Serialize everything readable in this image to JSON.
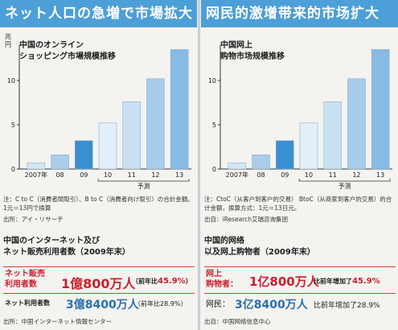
{
  "left": {
    "title": "ネット人口の急増で市場拡大",
    "chart_title_line1": "中国のオンライン",
    "chart_title_line2": "ショッピング市場規模推移",
    "y_unit": "兆円",
    "note": "注：C to C（消費者間取引）、B to C（消費者向け取引）の合計金額。1元＝13円で換算",
    "source": "出所：アイ・リサーチ",
    "section_title_line1": "中国のインターネット及び",
    "section_title_line2": "ネット販売利用者数（2009年末）",
    "stat1_label_line1": "ネット販売",
    "stat1_label_line2": "利用者数",
    "stat1_value": "1億800万人",
    "stat1_change_prefix": "（前年比",
    "stat1_change_pct": "45.9%",
    "stat1_change_suffix": "）",
    "stat2_label": "ネット利用者数",
    "stat2_value": "3億8400万人",
    "stat2_change": "（前年比28.9%）",
    "source2": "出所：中国インターネット情報センター"
  },
  "right": {
    "title": "网民的激增带来的市场扩大",
    "chart_title_line1": "中国网上",
    "chart_title_line2": "购物市场规模推移",
    "y_unit": "",
    "note": "注：CtoC（从客户到客户的交易） BtoC（从商家到客户的交易）的合计金额，换算方式：1元＝13日元。",
    "source": "出自：iResearch艾瑞咨询集团",
    "section_title_line1": "中国的网络",
    "section_title_line2": "以及网上购物者（2009年末）",
    "stat1_label_line1": "网上",
    "stat1_label_line2": "购物者：",
    "stat1_value": "1亿800万人",
    "stat1_change_prefix": "比前年增加了",
    "stat1_change_pct": "45.9%",
    "stat1_change_suffix": "",
    "stat2_label": "网民：",
    "stat2_value": "3亿8400万人",
    "stat2_change": "比前年增加了28.9%",
    "source2": "出自：中国网络信息中心"
  },
  "chart_data": {
    "type": "bar",
    "categories": [
      "2007年",
      "08",
      "09",
      "10",
      "11",
      "12",
      "13"
    ],
    "right_categories": [
      "2007年",
      "08",
      "09",
      "10",
      "11",
      "12",
      "13"
    ],
    "values": [
      0.7,
      1.6,
      3.2,
      5.2,
      7.6,
      10.2,
      13.5
    ],
    "ylim": [
      0,
      14
    ],
    "yticks": [
      0,
      5,
      10
    ],
    "forecast_label": "予測",
    "right_forecast_label": "予测",
    "forecast_from_index": 3,
    "colors": [
      "#d5e6f3",
      "#a9cde9",
      "#3a8fd0",
      "#e2eef8",
      "#c8e0f2",
      "#a7cdeb",
      "#86bbe4"
    ],
    "grid": false
  }
}
